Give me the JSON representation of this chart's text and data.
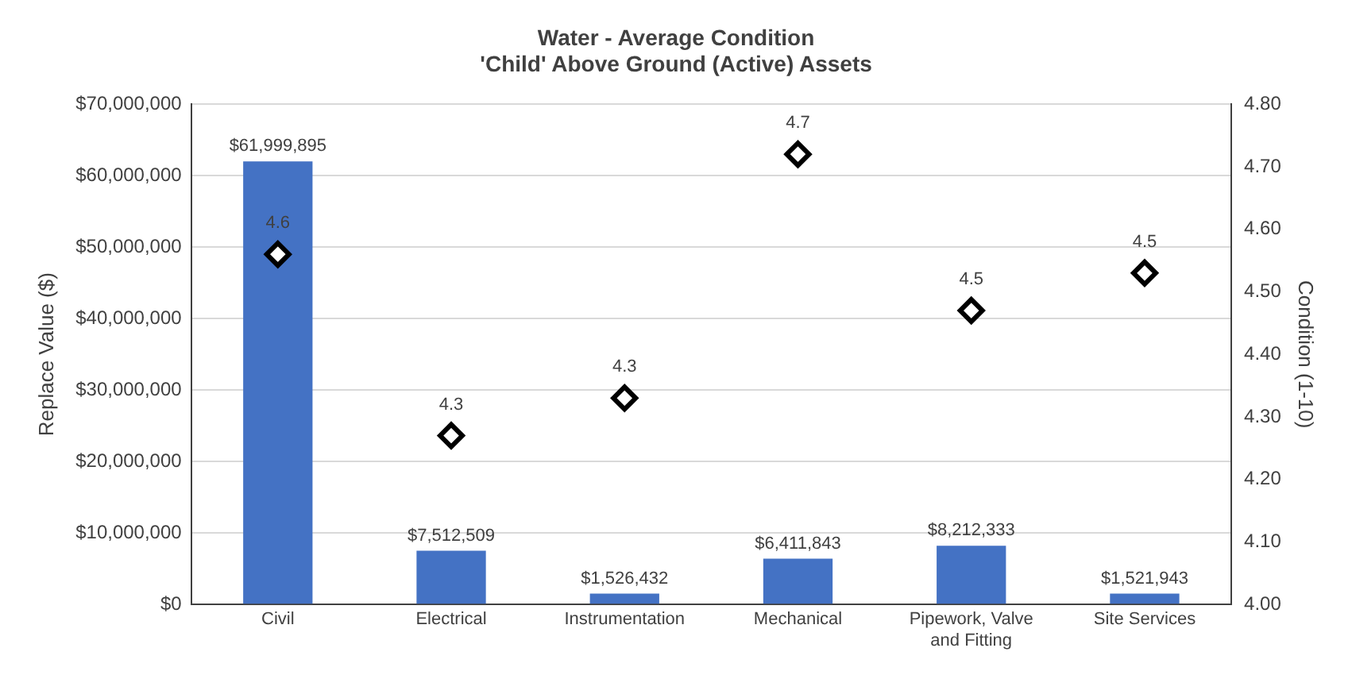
{
  "chart_data": {
    "type": "bar",
    "title": "Water - Average Condition",
    "subtitle": "'Child' Above Ground (Active) Assets",
    "ylabel": "Replace Value ($)",
    "y2label": "Condition (1-10)",
    "categories": [
      "Civil",
      "Electrical",
      "Instrumentation",
      "Mechanical",
      "Pipework, Valve and Fitting",
      "Site Services"
    ],
    "series": [
      {
        "color": "#4472c4",
        "values": [
          61999895,
          7512509,
          1526432,
          6411843,
          8212333,
          1521943
        ],
        "value_labels": [
          "$61,999,895",
          "$7,512,509",
          "$1,526,432",
          "$6,411,843",
          "$8,212,333",
          "$1,521,943"
        ]
      },
      {
        "type": "scatter",
        "axis": "y2",
        "color": "#000000",
        "marker": "diamond",
        "values": [
          4.56,
          4.27,
          4.33,
          4.72,
          4.47,
          4.53
        ],
        "value_labels": [
          "4.6",
          "4.3",
          "4.3",
          "4.7",
          "4.5",
          "4.5"
        ]
      }
    ],
    "ylim": [
      0,
      70000000
    ],
    "yticks": [
      {
        "value": 0,
        "label": "$0"
      },
      {
        "value": 10000000,
        "label": "$10,000,000"
      },
      {
        "value": 20000000,
        "label": "$20,000,000"
      },
      {
        "value": 30000000,
        "label": "$30,000,000"
      },
      {
        "value": 40000000,
        "label": "$40,000,000"
      },
      {
        "value": 50000000,
        "label": "$50,000,000"
      },
      {
        "value": 60000000,
        "label": "$60,000,000"
      },
      {
        "value": 70000000,
        "label": "$70,000,000"
      }
    ],
    "y2lim": [
      4,
      4.8
    ],
    "y2ticks": [
      {
        "value": 4,
        "label": "4.00"
      },
      {
        "value": 4.1,
        "label": "4.10"
      },
      {
        "value": 4.2,
        "label": "4.20"
      },
      {
        "value": 4.3,
        "label": "4.30"
      },
      {
        "value": 4.4,
        "label": "4.40"
      },
      {
        "value": 4.5,
        "label": "4.50"
      },
      {
        "value": 4.6,
        "label": "4.60"
      },
      {
        "value": 4.7,
        "label": "4.70"
      },
      {
        "value": 4.8,
        "label": "4.80"
      }
    ],
    "grid": "y",
    "legend": false
  }
}
